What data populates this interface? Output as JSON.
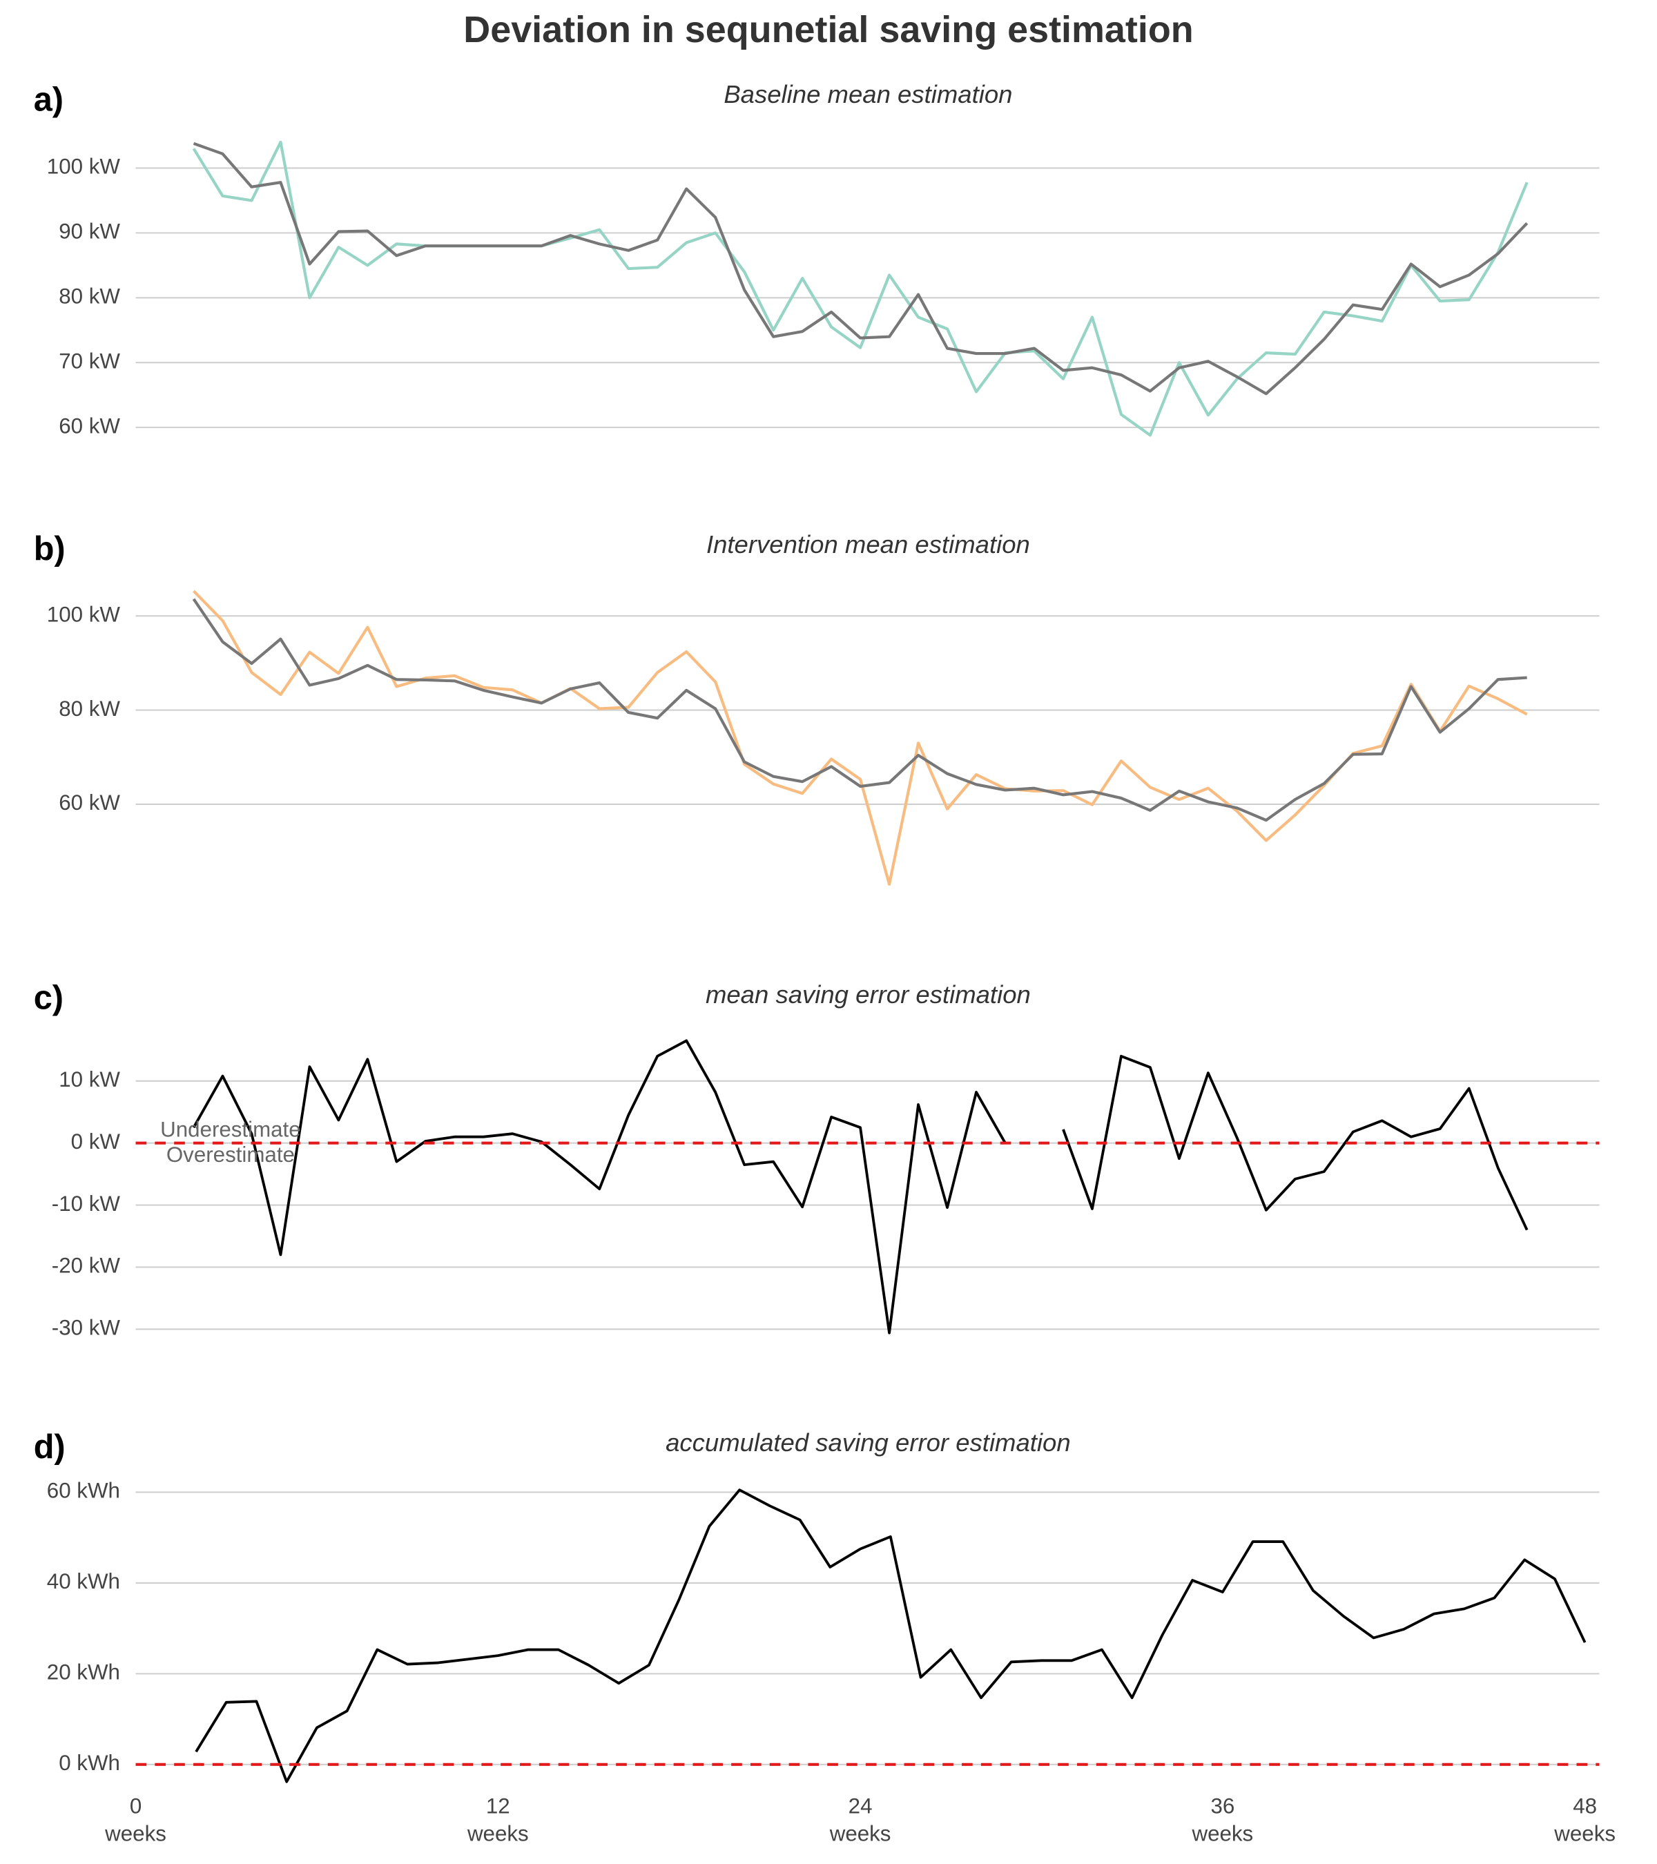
{
  "title": "Deviation in sequnetial saving estimation",
  "chart_data": [
    {
      "type": "line",
      "panel_label": "a)",
      "subtitle": "Baseline mean estimation",
      "x": [
        2,
        3,
        4,
        5,
        6,
        7,
        8,
        9,
        10,
        11,
        12,
        13,
        14,
        15,
        16,
        17,
        18,
        19,
        20,
        21,
        22,
        23,
        24,
        25,
        26,
        27,
        28,
        29,
        30,
        31,
        32,
        33,
        34,
        35,
        36,
        37,
        38,
        39,
        40,
        41,
        42,
        43,
        44,
        45,
        46,
        47,
        48
      ],
      "xlim": [
        0,
        50
      ],
      "ylim": [
        57,
        105
      ],
      "yticks": [
        {
          "value": 60,
          "label": "60 kW"
        },
        {
          "value": 70,
          "label": "70 kW"
        },
        {
          "value": 80,
          "label": "80 kW"
        },
        {
          "value": 90,
          "label": "90 kW"
        },
        {
          "value": 100,
          "label": "100 kW"
        }
      ],
      "grid": true,
      "series": [
        {
          "color": "#96d5c5",
          "values": [
            103,
            95.7,
            95,
            104,
            80,
            87.8,
            85,
            88.3,
            88,
            88,
            88,
            88,
            88,
            89.2,
            90.5,
            84.5,
            84.7,
            88.5,
            90,
            84,
            75,
            83,
            75.5,
            72.3,
            83.5,
            77,
            75.2,
            65.5,
            71.5,
            71.8,
            67.5,
            77,
            62,
            58.8,
            70,
            61.9,
            67.5,
            71.5,
            71.3,
            77.8,
            77.2,
            76.4,
            85,
            79.5,
            79.7,
            87,
            97.8
          ]
        },
        {
          "color": "#777777",
          "values": [
            103.8,
            102.2,
            97.1,
            97.8,
            85.2,
            90.2,
            90.3,
            86.5,
            88,
            88,
            88,
            88,
            88,
            89.6,
            88.3,
            87.3,
            88.9,
            96.8,
            92.4,
            81.2,
            74,
            74.8,
            77.8,
            73.8,
            74,
            80.5,
            72.2,
            71.4,
            71.4,
            72.2,
            68.8,
            69.2,
            68.1,
            65.6,
            69.2,
            70.2,
            67.8,
            65.2,
            69.2,
            73.6,
            78.9,
            78.2,
            85.2,
            81.7,
            83.5,
            86.8,
            91.5
          ]
        }
      ]
    },
    {
      "type": "line",
      "panel_label": "b)",
      "subtitle": "Intervention mean estimation",
      "x": [
        2,
        3,
        4,
        5,
        6,
        7,
        8,
        9,
        10,
        11,
        12,
        13,
        14,
        15,
        16,
        17,
        18,
        19,
        20,
        21,
        22,
        23,
        24,
        25,
        26,
        27,
        28,
        29,
        30,
        31,
        32,
        33,
        34,
        35,
        36,
        37,
        38,
        39,
        40,
        41,
        42,
        43,
        44,
        45,
        46,
        47,
        48
      ],
      "xlim": [
        0,
        50
      ],
      "ylim": [
        42,
        106
      ],
      "yticks": [
        {
          "value": 60,
          "label": "60 kW"
        },
        {
          "value": 80,
          "label": "80 kW"
        },
        {
          "value": 100,
          "label": "100 kW"
        }
      ],
      "grid": true,
      "series": [
        {
          "color": "#f8bb80",
          "values": [
            105.3,
            99,
            88,
            83.3,
            92.3,
            87.8,
            97.6,
            85,
            86.8,
            87.3,
            84.8,
            84.3,
            81.5,
            84.6,
            80.3,
            80.6,
            88,
            92.4,
            86,
            68.5,
            64.3,
            62.3,
            69.6,
            65.3,
            43,
            73,
            59,
            66.3,
            63.3,
            62.8,
            62.9,
            59.9,
            69.2,
            63.6,
            61,
            63.4,
            58.5,
            52.3,
            57.7,
            64,
            70.8,
            72.4,
            85.5,
            75.5,
            85.1,
            82.4,
            79.1
          ]
        },
        {
          "color": "#777777",
          "values": [
            103.6,
            94.5,
            89.9,
            95.1,
            85.3,
            86.7,
            89.5,
            86.5,
            86.4,
            86.2,
            84.2,
            82.8,
            81.5,
            84.5,
            85.8,
            79.5,
            78.3,
            84.2,
            80.3,
            69,
            65.9,
            64.8,
            68,
            63.8,
            64.6,
            70.4,
            66.5,
            64.2,
            63,
            63.4,
            62,
            62.7,
            61.3,
            58.7,
            62.8,
            60.5,
            59.2,
            56.6,
            61,
            64.4,
            70.6,
            70.7,
            85,
            75.3,
            80.3,
            86.5,
            86.9
          ]
        }
      ]
    },
    {
      "type": "line",
      "panel_label": "c)",
      "subtitle": "mean saving error estimation",
      "x": [
        2,
        3,
        4,
        5,
        6,
        7,
        8,
        9,
        10,
        11,
        12,
        13,
        14,
        15,
        16,
        17,
        18,
        19,
        20,
        21,
        22,
        23,
        24,
        25,
        26,
        27,
        28,
        29,
        30,
        31,
        32,
        33,
        34,
        35,
        36,
        37,
        38,
        39,
        40,
        41,
        42,
        43,
        44,
        45,
        46,
        47,
        48
      ],
      "xlim": [
        0,
        50
      ],
      "ylim": [
        -32,
        18
      ],
      "yticks": [
        {
          "value": -30,
          "label": "-30 kW"
        },
        {
          "value": -20,
          "label": "-20 kW"
        },
        {
          "value": -10,
          "label": "-10 kW"
        },
        {
          "value": 0,
          "label": "0 kW"
        },
        {
          "value": 10,
          "label": "10 kW"
        }
      ],
      "grid": true,
      "ref_line": 0,
      "ref_color": "#e31a1c",
      "annotations": [
        "Underestimate",
        "Overestimate"
      ],
      "series": [
        {
          "color": "#000000",
          "values": [
            2.5,
            10.8,
            1.5,
            -18,
            12.3,
            3.7,
            13.5,
            -3,
            0.3,
            1,
            1,
            1.5,
            0.2,
            -3.5,
            -7.4,
            4.5,
            14,
            16.5,
            8.2,
            -3.5,
            -3,
            -10.3,
            4.2,
            2.5,
            -30.6,
            6.2,
            -10.4,
            8.2,
            0,
            null,
            2.2,
            -10.6,
            14,
            12.2,
            -2.5,
            11.3,
            0.8,
            -10.8,
            -5.8,
            -4.6,
            1.8,
            3.6,
            1,
            2.3,
            8.8,
            -4,
            -14
          ]
        }
      ]
    },
    {
      "type": "line",
      "panel_label": "d)",
      "subtitle": "accumulated saving error estimation",
      "x": [
        2,
        3,
        4,
        5,
        6,
        7,
        8,
        9,
        10,
        11,
        12,
        13,
        14,
        15,
        16,
        17,
        18,
        19,
        20,
        21,
        22,
        23,
        24,
        25,
        26,
        27,
        28,
        29,
        30,
        31,
        32,
        33,
        34,
        35,
        36,
        37,
        38,
        39,
        40,
        41,
        42,
        43,
        44,
        45,
        46,
        47,
        48
      ],
      "xlim": [
        0,
        48
      ],
      "xticks": [
        0,
        12,
        24,
        36,
        48
      ],
      "x_unit": "weeks",
      "ylim": [
        -5,
        63
      ],
      "yticks": [
        {
          "value": 0,
          "label": "0 kWh"
        },
        {
          "value": 20,
          "label": "20 kWh"
        },
        {
          "value": 40,
          "label": "40 kWh"
        },
        {
          "value": 60,
          "label": "60 kWh"
        }
      ],
      "grid": true,
      "ref_line": 0,
      "ref_color": "#e31a1c",
      "series": [
        {
          "color": "#000000",
          "values": [
            2.8,
            13.7,
            13.9,
            -3.8,
            8.1,
            11.8,
            25.3,
            22.1,
            22.4,
            23.2,
            24,
            25.3,
            25.3,
            21.9,
            17.9,
            21.9,
            36.4,
            52.5,
            60.5,
            57,
            53.9,
            43.5,
            47.5,
            50.2,
            19.2,
            25.3,
            14.7,
            22.6,
            22.9,
            22.9,
            25.3,
            14.7,
            28.5,
            40.6,
            38,
            49.1,
            49.1,
            38.3,
            32.7,
            27.9,
            29.8,
            33.2,
            34.3,
            36.7,
            45.1,
            40.9,
            26.9
          ]
        }
      ]
    }
  ]
}
